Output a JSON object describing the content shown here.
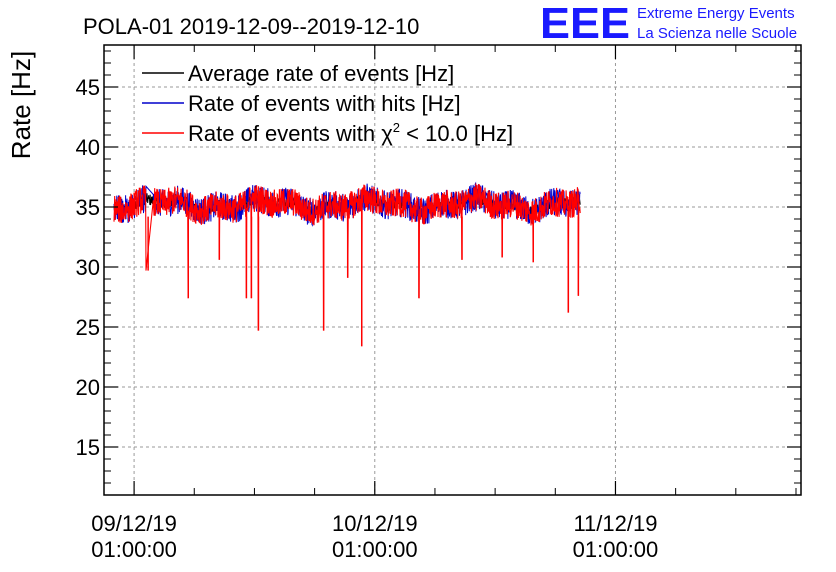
{
  "chart_data": {
    "type": "line",
    "title": "POLA-01 2019-12-09--2019-12-10",
    "ylabel": "Rate [Hz]",
    "xlabel": "",
    "ylim": [
      11,
      48.5
    ],
    "yticks": [
      15,
      20,
      25,
      30,
      35,
      40,
      45
    ],
    "xlim_hours": [
      -3,
      66.5
    ],
    "grid": true,
    "legend_position": "top-left",
    "x_tick_labels": [
      {
        "hours": 0,
        "date": "09/12/19",
        "time": "01:00:00"
      },
      {
        "hours": 24,
        "date": "10/12/19",
        "time": "01:00:00"
      },
      {
        "hours": 48,
        "date": "11/12/19",
        "time": "01:00:00"
      }
    ],
    "legend": [
      {
        "label": "Average rate of events [Hz]",
        "color": "#000000"
      },
      {
        "label": "Rate of events with hits [Hz]",
        "color": "#0000cc"
      },
      {
        "label_prefix": "Rate of events with ",
        "chi_symbol": "χ",
        "chi_exp": "2",
        "label_suffix": " < 10.0 [Hz]",
        "color": "#ff0000"
      }
    ],
    "series": [
      {
        "name": "Average rate of events [Hz]",
        "color": "#000000",
        "baseline": 35.2,
        "noise": 0.5
      },
      {
        "name": "Rate of events with hits [Hz]",
        "color": "#0000cc",
        "baseline": 35.2,
        "noise": 1.2
      },
      {
        "name": "Rate of events with chi2 < 10.0 [Hz]",
        "color": "#ff0000",
        "baseline": 35.2,
        "noise": 1.2,
        "x_range_hours": [
          -2.0,
          44.5
        ],
        "gap_hours": [
          1.2,
          1.9
        ],
        "dips": [
          {
            "hours": 1.4,
            "value": 29.7
          },
          {
            "hours": 5.4,
            "value": 27.4
          },
          {
            "hours": 8.5,
            "value": 30.6
          },
          {
            "hours": 11.2,
            "value": 27.4
          },
          {
            "hours": 11.7,
            "value": 27.4
          },
          {
            "hours": 12.4,
            "value": 24.7
          },
          {
            "hours": 18.9,
            "value": 24.7
          },
          {
            "hours": 21.3,
            "value": 29.1
          },
          {
            "hours": 22.7,
            "value": 23.4
          },
          {
            "hours": 28.4,
            "value": 27.4
          },
          {
            "hours": 32.7,
            "value": 30.6
          },
          {
            "hours": 36.7,
            "value": 30.8
          },
          {
            "hours": 39.8,
            "value": 30.4
          },
          {
            "hours": 43.3,
            "value": 26.2
          },
          {
            "hours": 44.3,
            "value": 27.6
          }
        ]
      }
    ]
  },
  "logo": {
    "mark": "EEE",
    "line1": "Extreme Energy Events",
    "line2": "La Scienza nelle Scuole",
    "color": "#1a1aff"
  }
}
